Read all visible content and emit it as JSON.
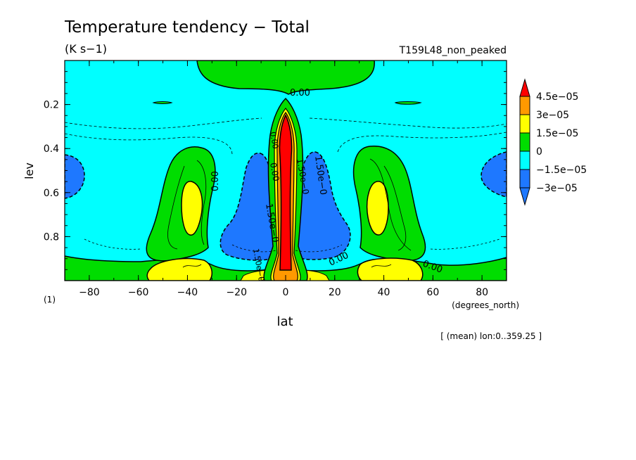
{
  "chart_data": {
    "type": "heatmap",
    "title": "Temperature tendency − Total",
    "units": "(K s−1)",
    "experiment": "T159L48_non_peaked",
    "xlabel": "lat",
    "xunits": "(degrees_north)",
    "ylabel": "lev",
    "yunits": "(1)",
    "xlim": [
      -90,
      90
    ],
    "ylim": [
      1.0,
      0.0
    ],
    "x_ticks": [
      -80,
      -60,
      -40,
      -20,
      0,
      20,
      40,
      60,
      80
    ],
    "x_tick_labels": [
      "−80",
      "−60",
      "−40",
      "−20",
      "0",
      "20",
      "40",
      "60",
      "80"
    ],
    "y_ticks": [
      0.2,
      0.4,
      0.6,
      0.8
    ],
    "y_tick_labels": [
      "0.2",
      "0.4",
      "0.6",
      "0.8"
    ],
    "footnote": "[ (mean) lon:0..359.25 ]",
    "colorbar": {
      "levels": [
        -3e-05,
        -1.5e-05,
        0,
        1.5e-05,
        3e-05,
        4.5e-05
      ],
      "labels": [
        "−3e−05",
        "−1.5e−05",
        "0",
        "1.5e−05",
        "3e−05",
        "4.5e−05"
      ],
      "colors": [
        "#1e78ff",
        "#00ffff",
        "#00dd00",
        "#ffff00",
        "#ff9900",
        "#ff0000",
        "#00ffff"
      ]
    },
    "contour_labels": [
      "0.00",
      "0.00",
      "0.00",
      "0.00",
      "0.00",
      "1.50e−0",
      "1.50e−0",
      "1.50e−0",
      "0.00",
      "1.50e−0"
    ],
    "features": [
      {
        "lat": 0,
        "lev": 0.6,
        "level": "max",
        "note": "equatorial heating column > 4.5e-05"
      },
      {
        "lat": -40,
        "lev": 0.65,
        "level": "1.5e-05 to 3e-05"
      },
      {
        "lat": 40,
        "lev": 0.65,
        "level": "1.5e-05 to 3e-05"
      },
      {
        "lat": -15,
        "lev": 0.6,
        "level": "-3e-05 to -1.5e-05"
      },
      {
        "lat": 15,
        "lev": 0.6,
        "level": "-3e-05 to -1.5e-05"
      },
      {
        "lat": -40,
        "lev": 0.95,
        "level": "1.5e-05 to 3e-05"
      },
      {
        "lat": 40,
        "lev": 0.95,
        "level": "1.5e-05 to 3e-05"
      }
    ]
  }
}
